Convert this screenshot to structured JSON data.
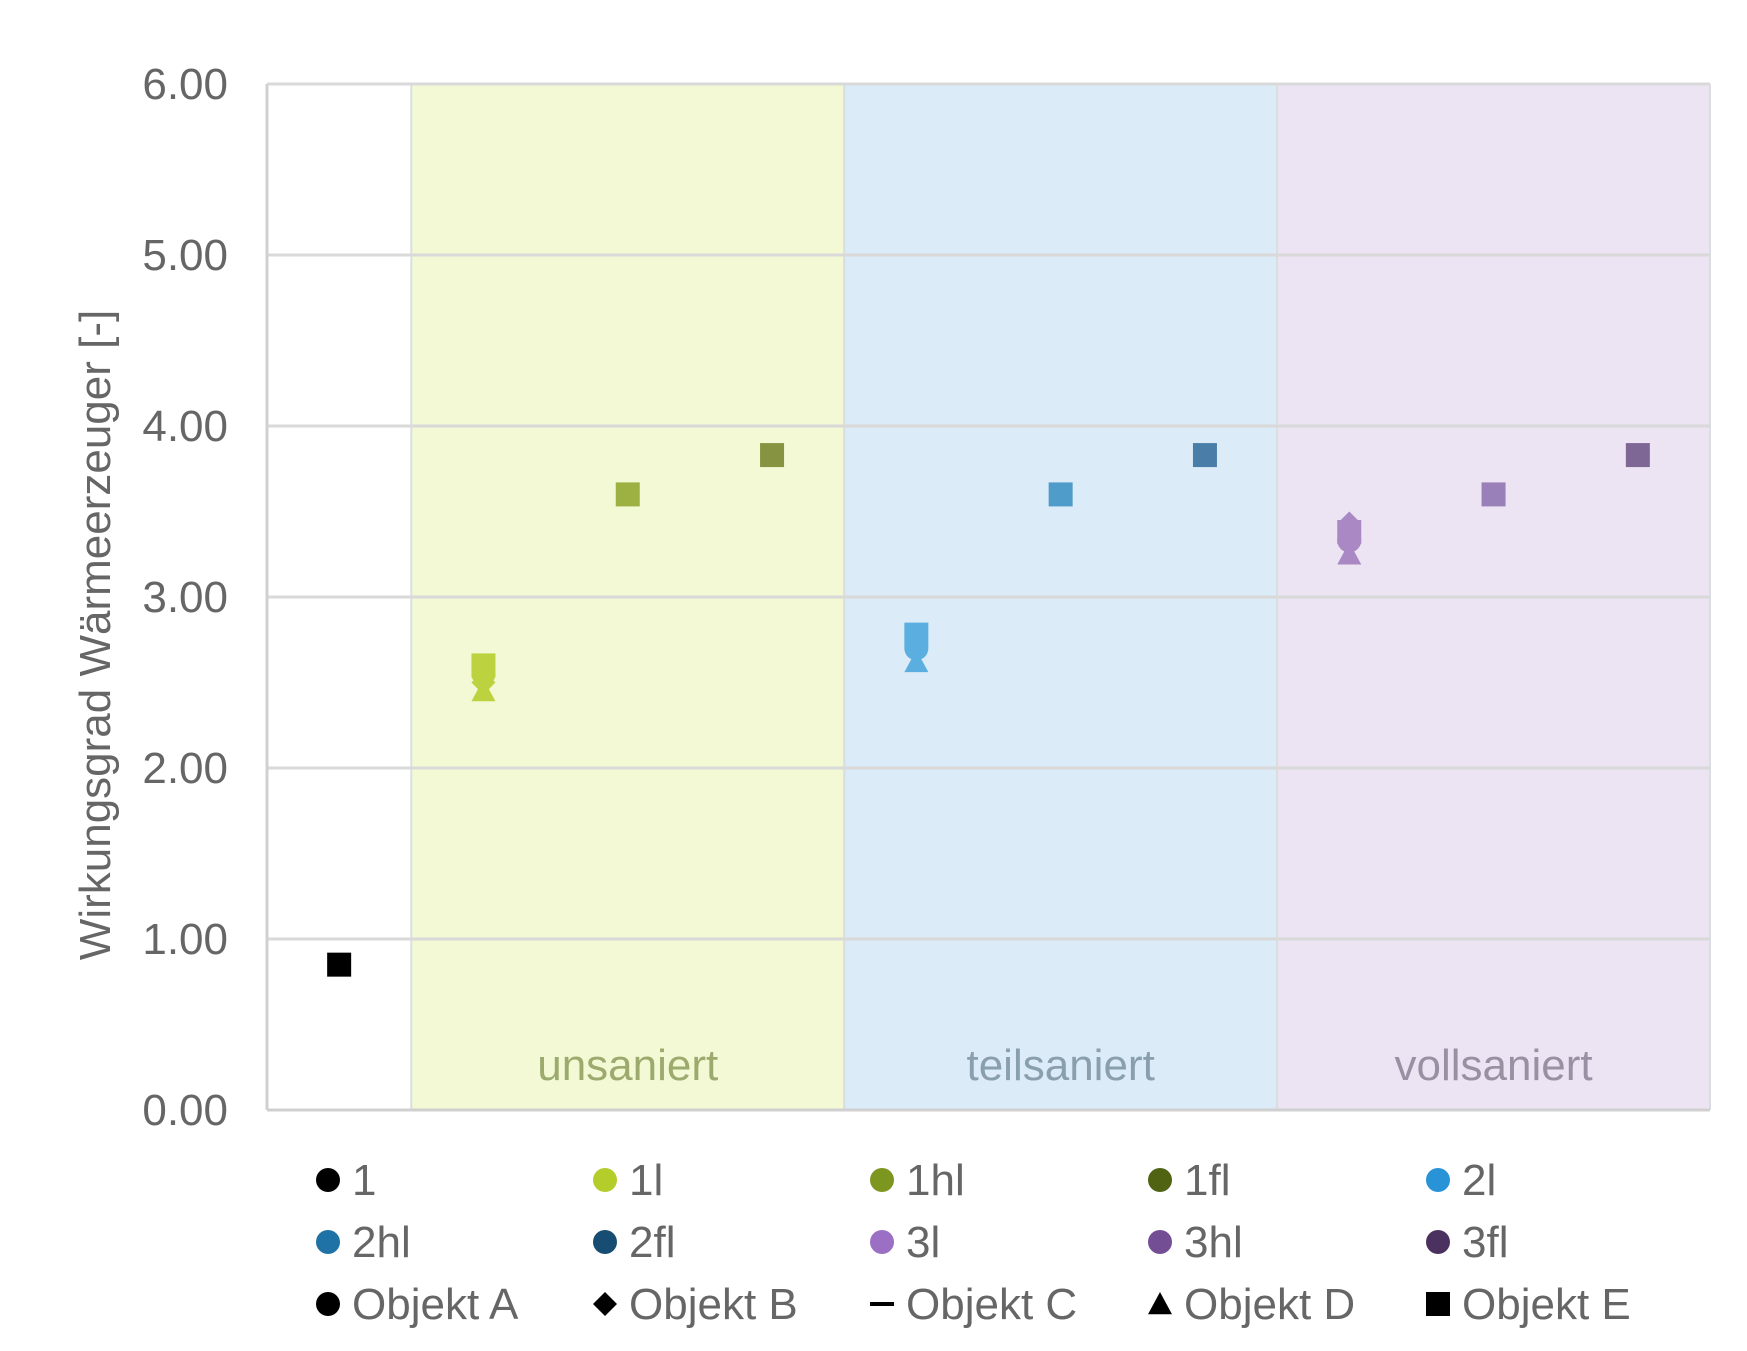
{
  "chart_data": {
    "type": "scatter",
    "title": "",
    "xlabel": "",
    "ylabel": "Wirkungsgrad Wärmeerzeuger [-]",
    "ylim": [
      0,
      6
    ],
    "y_ticks": [
      "0.00",
      "1.00",
      "2.00",
      "3.00",
      "4.00",
      "5.00",
      "6.00"
    ],
    "grid": true,
    "legend_position": "bottom",
    "x_categories": [
      "1",
      "1l",
      "1hl",
      "1fl",
      "2l",
      "2hl",
      "2fl",
      "3l",
      "3hl",
      "3fl"
    ],
    "bands": [
      {
        "label": "unsaniert",
        "from": "1l",
        "to": "1fl",
        "fill": "#f2f9d4",
        "text_color": "#9caa6e"
      },
      {
        "label": "teilsaniert",
        "from": "2l",
        "to": "2fl",
        "fill": "#dbebf7",
        "text_color": "#8a9fad"
      },
      {
        "label": "vollsaniert",
        "from": "3l",
        "to": "3fl",
        "fill": "#ece4f2",
        "text_color": "#9a90a3"
      }
    ],
    "series": [
      {
        "name": "1",
        "color": "#000000",
        "points": [
          {
            "object": "Objekt E",
            "y": 0.85
          }
        ]
      },
      {
        "name": "1l",
        "color": "#bcd33f",
        "points": [
          {
            "object": "Objekt A",
            "y": 2.55
          },
          {
            "object": "Objekt B",
            "y": 2.5
          },
          {
            "object": "Objekt D",
            "y": 2.45
          },
          {
            "object": "Objekt E",
            "y": 2.6
          }
        ]
      },
      {
        "name": "1hl",
        "color": "#9db143",
        "points": [
          {
            "object": "Objekt E",
            "y": 3.6
          }
        ]
      },
      {
        "name": "1fl",
        "color": "#869442",
        "points": [
          {
            "object": "Objekt E",
            "y": 3.83
          }
        ]
      },
      {
        "name": "2l",
        "color": "#5aaee0",
        "points": [
          {
            "object": "Objekt A",
            "y": 2.7
          },
          {
            "object": "Objekt B",
            "y": 2.73
          },
          {
            "object": "Objekt D",
            "y": 2.62
          },
          {
            "object": "Objekt E",
            "y": 2.78
          }
        ]
      },
      {
        "name": "2hl",
        "color": "#4f9ccb",
        "points": [
          {
            "object": "Objekt E",
            "y": 3.6
          }
        ]
      },
      {
        "name": "2fl",
        "color": "#4a7ea8",
        "points": [
          {
            "object": "Objekt E",
            "y": 3.83
          }
        ]
      },
      {
        "name": "3l",
        "color": "#aa88c4",
        "points": [
          {
            "object": "Objekt A",
            "y": 3.33
          },
          {
            "object": "Objekt B",
            "y": 3.43
          },
          {
            "object": "Objekt D",
            "y": 3.25
          },
          {
            "object": "Objekt E",
            "y": 3.38
          }
        ]
      },
      {
        "name": "3hl",
        "color": "#9a80b8",
        "points": [
          {
            "object": "Objekt E",
            "y": 3.6
          }
        ]
      },
      {
        "name": "3fl",
        "color": "#7e6794",
        "points": [
          {
            "object": "Objekt E",
            "y": 3.83
          }
        ]
      }
    ],
    "legend": [
      {
        "label": "1",
        "marker": "circle",
        "color": "#000000"
      },
      {
        "label": "1l",
        "marker": "circle",
        "color": "#b5cd2b"
      },
      {
        "label": "1hl",
        "marker": "circle",
        "color": "#7d9620"
      },
      {
        "label": "1fl",
        "marker": "circle",
        "color": "#4f6313"
      },
      {
        "label": "2l",
        "marker": "circle",
        "color": "#2893d7"
      },
      {
        "label": "2hl",
        "marker": "circle",
        "color": "#1f72a6"
      },
      {
        "label": "2fl",
        "marker": "circle",
        "color": "#174d72"
      },
      {
        "label": "3l",
        "marker": "circle",
        "color": "#9b70c4"
      },
      {
        "label": "3hl",
        "marker": "circle",
        "color": "#744e95"
      },
      {
        "label": "3fl",
        "marker": "circle",
        "color": "#4b3160"
      },
      {
        "label": "Objekt A",
        "marker": "circle",
        "color": "#000000"
      },
      {
        "label": "Objekt B",
        "marker": "diamond",
        "color": "#000000"
      },
      {
        "label": "Objekt C",
        "marker": "dash",
        "color": "#000000"
      },
      {
        "label": "Objekt D",
        "marker": "triangle",
        "color": "#000000"
      },
      {
        "label": "Objekt E",
        "marker": "square",
        "color": "#000000"
      }
    ]
  }
}
